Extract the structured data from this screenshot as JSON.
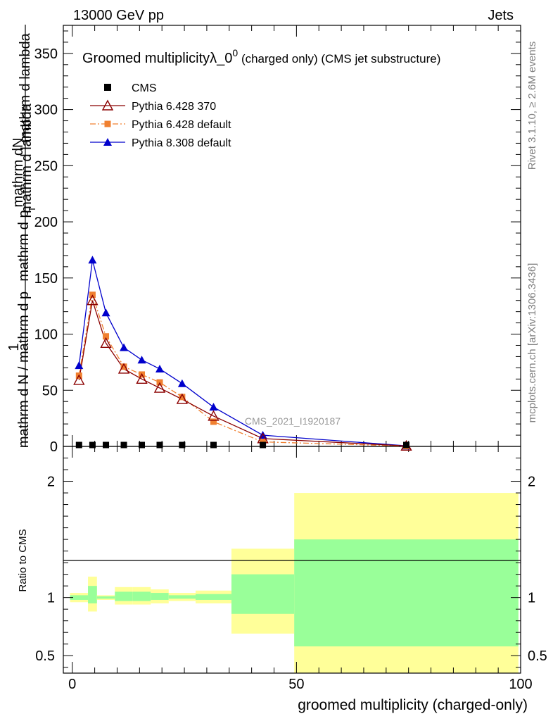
{
  "header": {
    "energy": "13000 GeV pp",
    "category": "Jets"
  },
  "plot": {
    "title_main": "Groomed multiplicity",
    "title_lambda": "λ_0",
    "title_sup": "0",
    "title_rest": " (charged only) (CMS jet substructure)",
    "analysis_id": "CMS_2021_I1920187",
    "ylabel_numerator": "mathrm dN",
    "ylabel_num_right": "mathrm d lambda",
    "ylabel_one": "1",
    "ylabel_denominator": "mathrm d N / mathrm d p",
    "ylabel_den_mid": "mathrm d p",
    "ylabel_sub": "T",
    "ylabel_den_end": " mathrm d lambda",
    "ratio_ylabel": "Ratio to CMS",
    "xlabel": "groomed multiplicity (charged-only)"
  },
  "side": {
    "rivet": "Rivet 3.1.10, ≥ 2.6M events",
    "mcplots": "mcplots.cern.ch [arXiv:1306.3436]"
  },
  "legend": [
    {
      "name": "CMS",
      "color": "#000000",
      "marker": "square"
    },
    {
      "name": "Pythia 6.428 370",
      "color": "#8b0000",
      "marker": "open-triangle"
    },
    {
      "name": "Pythia 6.428 default",
      "color": "#f08030",
      "marker": "small-square"
    },
    {
      "name": "Pythia 8.308 default",
      "color": "#0000cc",
      "marker": "triangle"
    }
  ],
  "chart_data": {
    "type": "line",
    "xlim": [
      -2,
      100
    ],
    "ylim": [
      0,
      375
    ],
    "ratio_ylim": [
      0.35,
      2.3
    ],
    "xticks": [
      "0",
      "50",
      "100"
    ],
    "yticks": [
      "0",
      "50",
      "100",
      "150",
      "200",
      "250",
      "300",
      "350"
    ],
    "ratio_yticks": [
      "0.5",
      "1",
      "2"
    ],
    "series": [
      {
        "name": "CMS",
        "x": [
          1.5,
          4.5,
          7.5,
          11.5,
          15.5,
          19.5,
          24.5,
          31.5,
          42.5,
          74.5
        ],
        "y": [
          0.3,
          0.3,
          0.3,
          0.3,
          0.3,
          0.3,
          0.3,
          0.3,
          0.3,
          0.3
        ]
      },
      {
        "name": "Pythia 6.428 370",
        "x": [
          1.5,
          4.5,
          7.5,
          11.5,
          15.5,
          19.5,
          24.5,
          31.5,
          42.5,
          74.5
        ],
        "y": [
          59,
          130,
          92,
          69,
          60,
          52,
          42,
          27,
          7,
          0.4
        ]
      },
      {
        "name": "Pythia 6.428 default",
        "x": [
          1.5,
          4.5,
          7.5,
          11.5,
          15.5,
          19.5,
          24.5,
          31.5,
          42.5,
          74.5
        ],
        "y": [
          63,
          135,
          98,
          71,
          64,
          57,
          44,
          22,
          4,
          0.3
        ]
      },
      {
        "name": "Pythia 8.308 default",
        "x": [
          1.5,
          4.5,
          7.5,
          11.5,
          15.5,
          19.5,
          24.5,
          31.5,
          42.5,
          74.5
        ],
        "y": [
          72,
          166,
          119,
          88,
          77,
          69,
          56,
          35,
          10,
          0.5
        ]
      }
    ],
    "ratio_bands": [
      {
        "x0": -0.5,
        "x1": 3.5,
        "green": [
          0.98,
          1.02
        ],
        "yellow": [
          0.96,
          1.04
        ]
      },
      {
        "x0": 3.5,
        "x1": 5.5,
        "green": [
          0.95,
          1.1
        ],
        "yellow": [
          0.88,
          1.18
        ]
      },
      {
        "x0": 5.5,
        "x1": 9.5,
        "green": [
          0.99,
          1.01
        ],
        "yellow": [
          0.98,
          1.02
        ]
      },
      {
        "x0": 9.5,
        "x1": 13.5,
        "green": [
          0.97,
          1.05
        ],
        "yellow": [
          0.94,
          1.09
        ]
      },
      {
        "x0": 13.5,
        "x1": 17.5,
        "green": [
          0.97,
          1.05
        ],
        "yellow": [
          0.94,
          1.09
        ]
      },
      {
        "x0": 17.5,
        "x1": 21.5,
        "green": [
          0.98,
          1.04
        ],
        "yellow": [
          0.95,
          1.07
        ]
      },
      {
        "x0": 21.5,
        "x1": 27.5,
        "green": [
          0.99,
          1.02
        ],
        "yellow": [
          0.97,
          1.04
        ]
      },
      {
        "x0": 27.5,
        "x1": 35.5,
        "green": [
          0.98,
          1.03
        ],
        "yellow": [
          0.95,
          1.06
        ]
      },
      {
        "x0": 35.5,
        "x1": 49.5,
        "green": [
          0.86,
          1.2
        ],
        "yellow": [
          0.69,
          1.42
        ]
      },
      {
        "x0": 49.5,
        "x1": 99.5,
        "green": [
          0.58,
          1.5
        ],
        "yellow": [
          0.35,
          1.9
        ]
      }
    ]
  }
}
